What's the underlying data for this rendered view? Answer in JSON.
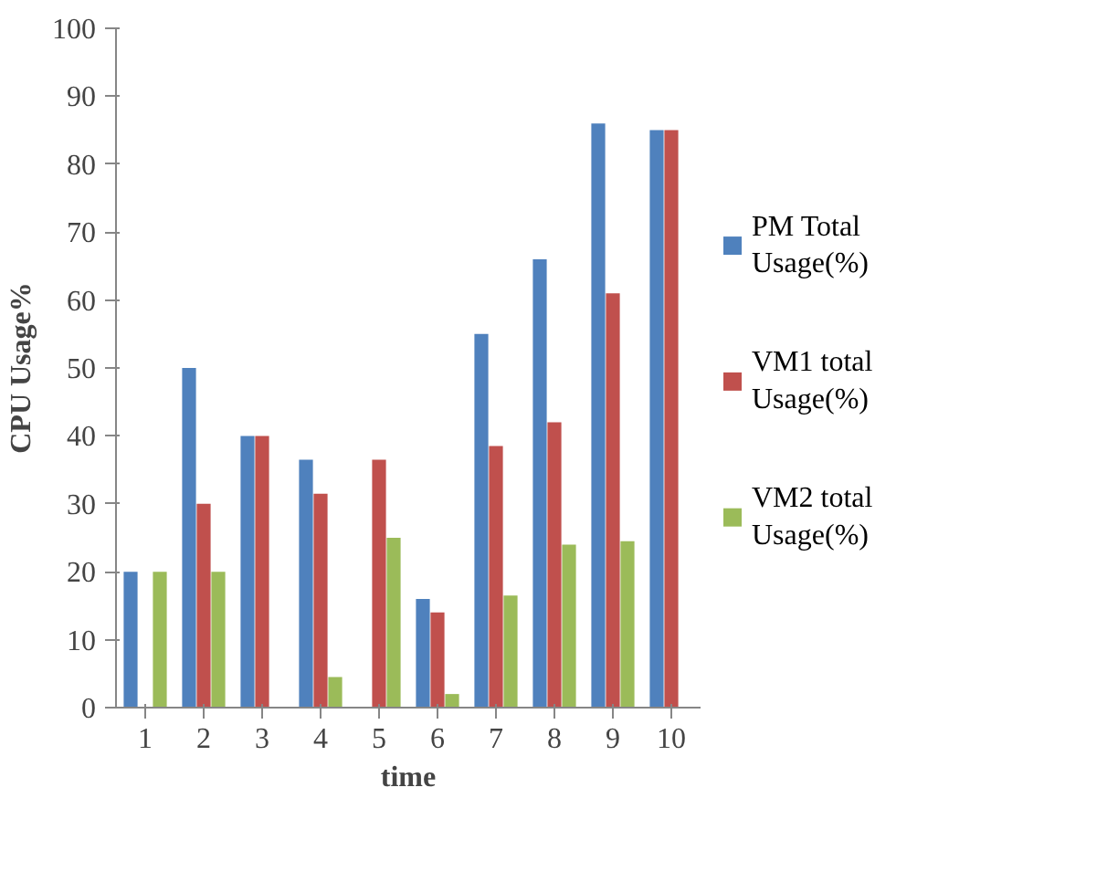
{
  "chart_data": {
    "type": "bar",
    "xlabel": "time",
    "ylabel": "CPU Usage%",
    "categories": [
      "1",
      "2",
      "3",
      "4",
      "5",
      "6",
      "7",
      "8",
      "9",
      "10"
    ],
    "series": [
      {
        "name": "PM Total Usage(%)",
        "color": "#4f81bd",
        "values": [
          20,
          50,
          40,
          36.5,
          0,
          16,
          55,
          66,
          86,
          85
        ]
      },
      {
        "name": "VM1 total Usage(%)",
        "color": "#c0504d",
        "values": [
          0,
          30,
          40,
          31.5,
          36.5,
          14,
          38.5,
          42,
          61,
          85
        ]
      },
      {
        "name": "VM2 total Usage(%)",
        "color": "#9bbb59",
        "values": [
          20,
          20,
          0,
          4.5,
          25,
          2,
          16.5,
          24,
          24.5,
          0
        ]
      }
    ],
    "ylim": [
      0,
      100
    ],
    "yticks": [
      0,
      10,
      20,
      30,
      40,
      50,
      60,
      70,
      80,
      90,
      100
    ],
    "grid": false,
    "legend": "right"
  }
}
